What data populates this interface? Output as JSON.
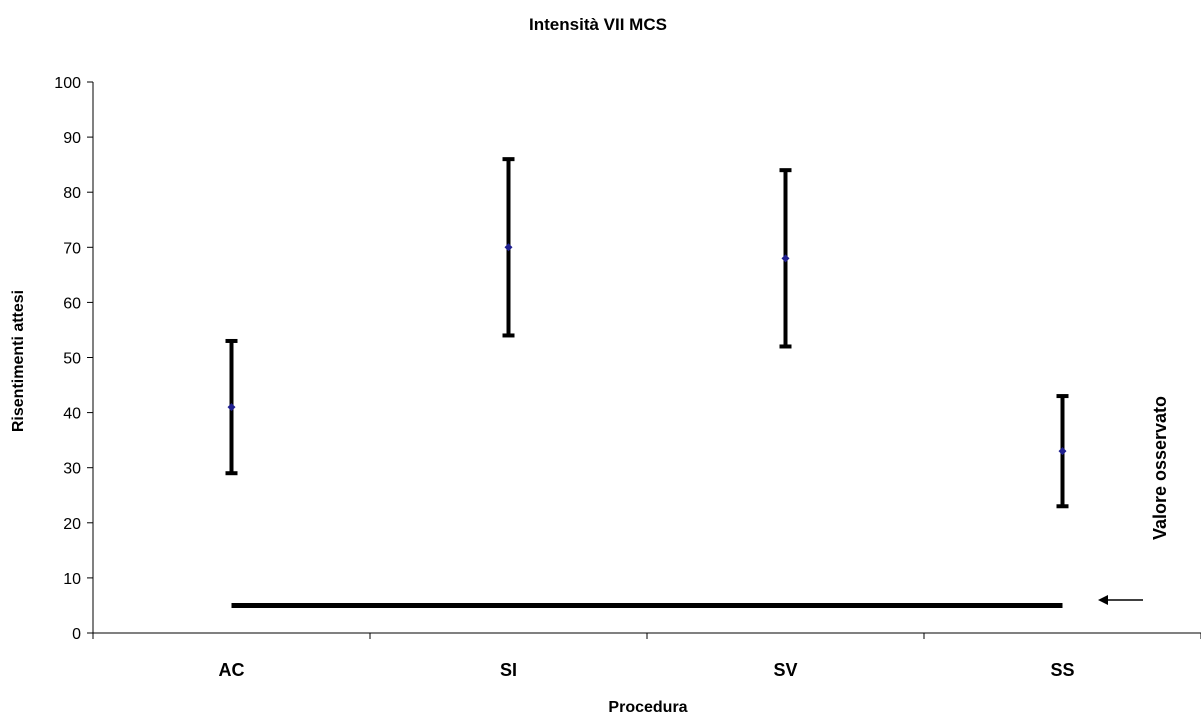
{
  "chart_data": {
    "type": "errorbar",
    "title": "Intensità VII MCS",
    "xlabel": "Procedura",
    "ylabel": "Risentimenti attesi",
    "ylim": [
      0,
      100
    ],
    "yticks": [
      0,
      10,
      20,
      30,
      40,
      50,
      60,
      70,
      80,
      90,
      100
    ],
    "categories": [
      "AC",
      "SI",
      "SV",
      "SS"
    ],
    "series": [
      {
        "values": [
          41,
          70,
          68,
          33
        ],
        "lower": [
          29,
          54,
          52,
          23
        ],
        "upper": [
          53,
          86,
          84,
          43
        ],
        "marker_color": "#1f1f8f"
      }
    ],
    "observed_value": 5,
    "annotation": "Valore osservato",
    "grid": false,
    "legend": "none"
  }
}
